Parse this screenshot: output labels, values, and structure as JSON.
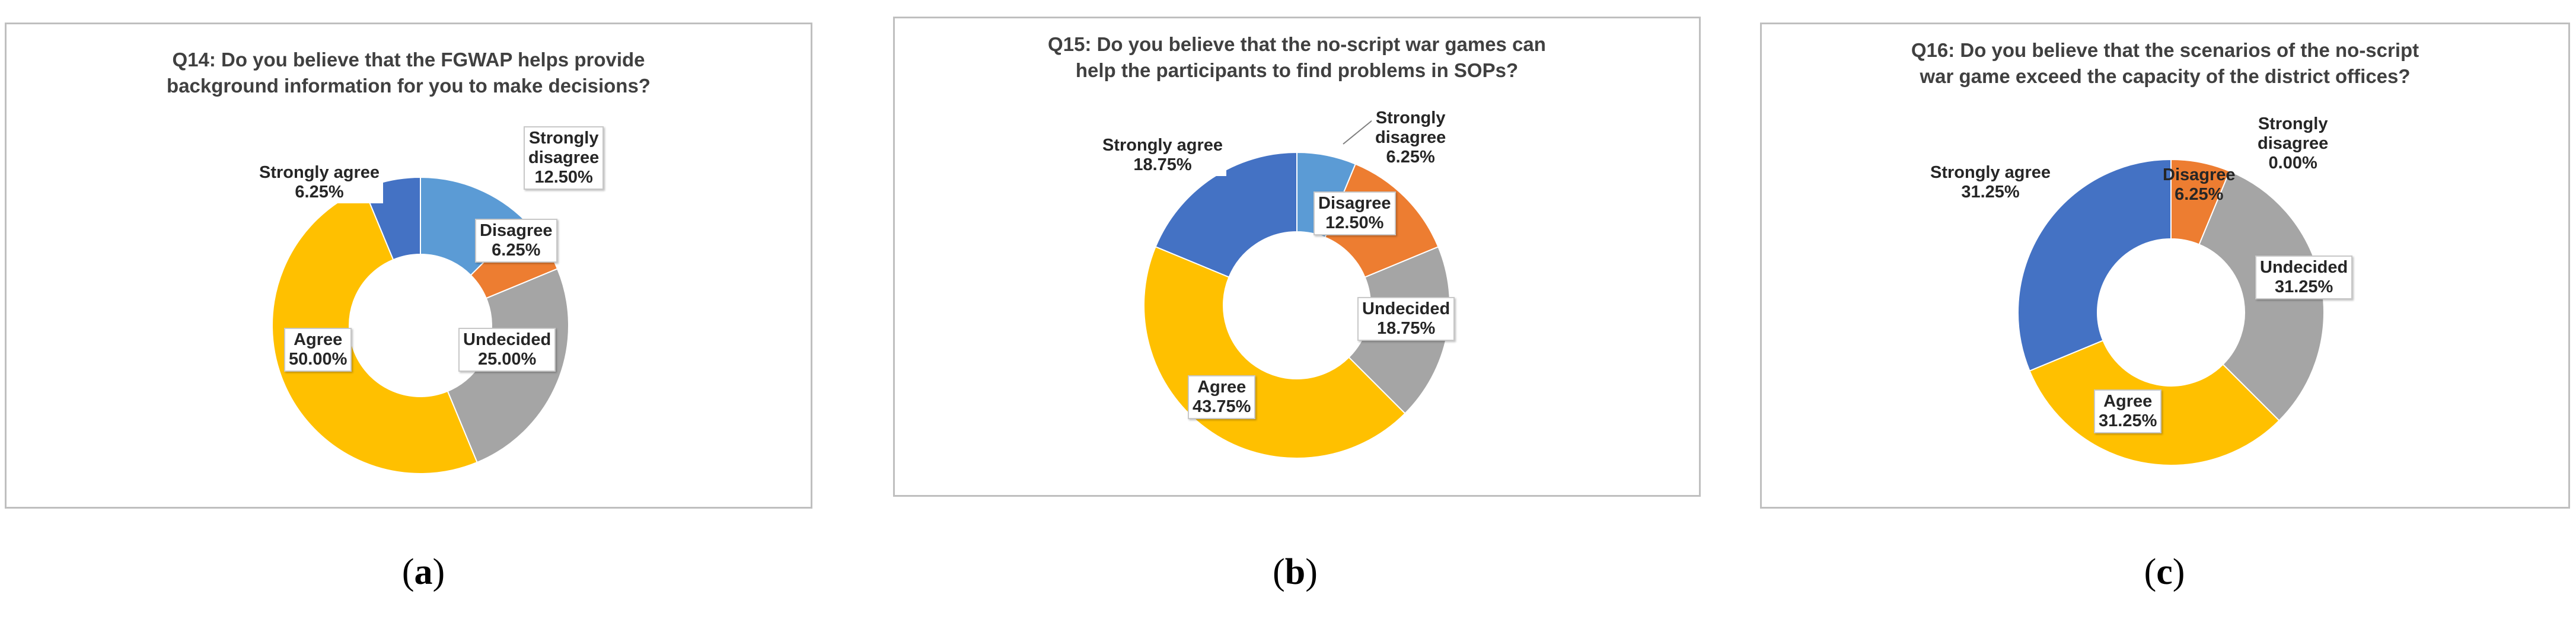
{
  "colors": {
    "strongly_disagree": "#5B9BD5",
    "disagree": "#ED7D31",
    "undecided": "#A5A5A5",
    "agree": "#FFC000",
    "strongly_agree": "#4472C4"
  },
  "chart_data": [
    {
      "type": "pie",
      "title": "Q14: Do you believe that the FGWAP helps provide background information for you to make decisions?",
      "title_lines": [
        "Q14: Do you believe that the FGWAP helps provide",
        "background information for you to make decisions?"
      ],
      "caption": {
        "open": "(",
        "letter": "a",
        "close": ")"
      },
      "slices": [
        {
          "key": "strongly_disagree",
          "label_lines": [
            "Strongly",
            "disagree"
          ],
          "value": 12.5,
          "value_label": "12.50%"
        },
        {
          "key": "disagree",
          "label_lines": [
            "Disagree"
          ],
          "value": 6.25,
          "value_label": "6.25%"
        },
        {
          "key": "undecided",
          "label_lines": [
            "Undecided"
          ],
          "value": 25.0,
          "value_label": "25.00%"
        },
        {
          "key": "agree",
          "label_lines": [
            "Agree"
          ],
          "value": 50.0,
          "value_label": "50.00%"
        },
        {
          "key": "strongly_agree",
          "label_lines": [
            "Strongly agree"
          ],
          "value": 6.25,
          "value_label": "6.25%"
        }
      ]
    },
    {
      "type": "pie",
      "title": "Q15: Do you believe that the no-script war games can help the participants to find problems in SOPs?",
      "title_lines": [
        "Q15: Do you believe that the no-script war games can",
        "help the participants to find problems in SOPs?"
      ],
      "caption": {
        "open": "(",
        "letter": "b",
        "close": ")"
      },
      "slices": [
        {
          "key": "strongly_disagree",
          "label_lines": [
            "Strongly",
            "disagree"
          ],
          "value": 6.25,
          "value_label": "6.25%"
        },
        {
          "key": "disagree",
          "label_lines": [
            "Disagree"
          ],
          "value": 12.5,
          "value_label": "12.50%"
        },
        {
          "key": "undecided",
          "label_lines": [
            "Undecided"
          ],
          "value": 18.75,
          "value_label": "18.75%"
        },
        {
          "key": "agree",
          "label_lines": [
            "Agree"
          ],
          "value": 43.75,
          "value_label": "43.75%"
        },
        {
          "key": "strongly_agree",
          "label_lines": [
            "Strongly agree"
          ],
          "value": 18.75,
          "value_label": "18.75%"
        }
      ]
    },
    {
      "type": "pie",
      "title": "Q16: Do you believe that the scenarios of the no-script war game exceed the capacity of the district offices?",
      "title_lines": [
        "Q16: Do you believe that the scenarios of the no-script",
        "war game exceed the capacity of the district offices?"
      ],
      "caption": {
        "open": "(",
        "letter": "c",
        "close": ")"
      },
      "slices": [
        {
          "key": "strongly_disagree",
          "label_lines": [
            "Strongly",
            "disagree"
          ],
          "value": 0.0,
          "value_label": "0.00%"
        },
        {
          "key": "disagree",
          "label_lines": [
            "Disagree"
          ],
          "value": 6.25,
          "value_label": "6.25%"
        },
        {
          "key": "undecided",
          "label_lines": [
            "Undecided"
          ],
          "value": 31.25,
          "value_label": "31.25%"
        },
        {
          "key": "agree",
          "label_lines": [
            "Agree"
          ],
          "value": 31.25,
          "value_label": "31.25%"
        },
        {
          "key": "strongly_agree",
          "label_lines": [
            "Strongly agree"
          ],
          "value": 31.25,
          "value_label": "31.25%"
        }
      ]
    }
  ]
}
